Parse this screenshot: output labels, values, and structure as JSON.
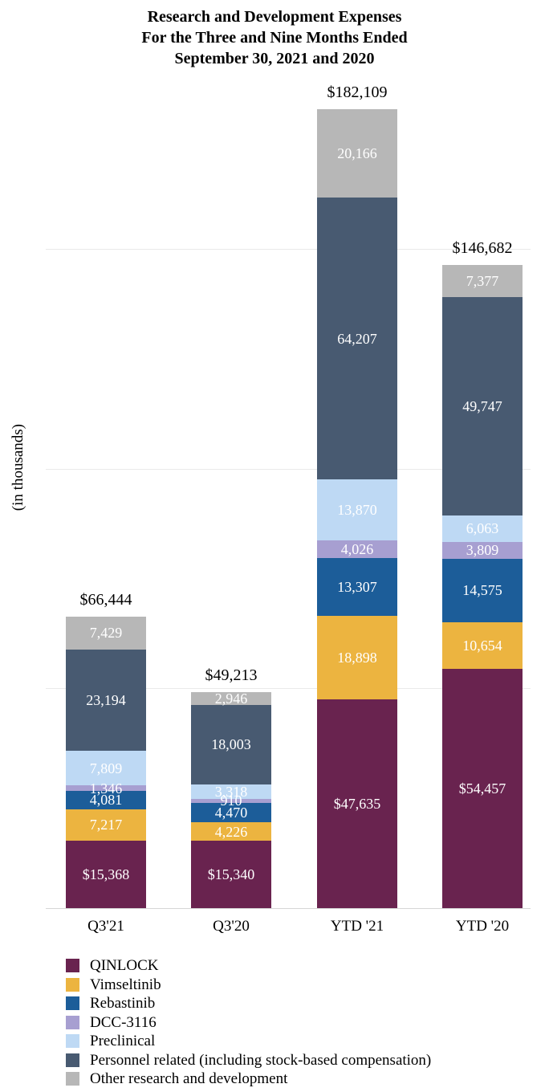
{
  "title_lines": [
    "Research and Development Expenses",
    "For the Three and Nine Months Ended",
    "September 30, 2021 and 2020"
  ],
  "y_axis_label": "(in thousands)",
  "chart_data": {
    "type": "bar",
    "stacked": true,
    "categories": [
      "Q3'21",
      "Q3'20",
      "YTD '21",
      "YTD '20"
    ],
    "totals_values": [
      66444,
      49213,
      182109,
      146682
    ],
    "totals_labels": [
      "$66,444",
      "$49,213",
      "$182,109",
      "$146,682"
    ],
    "series": [
      {
        "name": "QINLOCK",
        "color": "#69234f",
        "values": [
          15368,
          15340,
          47635,
          54457
        ],
        "labels": [
          "$15,368",
          "$15,340",
          "$47,635",
          "$54,457"
        ]
      },
      {
        "name": "Vimseltinib",
        "color": "#ecb440",
        "values": [
          7217,
          4226,
          18898,
          10654
        ],
        "labels": [
          "7,217",
          "4,226",
          "18,898",
          "10,654"
        ]
      },
      {
        "name": "Rebastinib",
        "color": "#1c5d99",
        "values": [
          4081,
          4470,
          13307,
          14575
        ],
        "labels": [
          "4,081",
          "4,470",
          "13,307",
          "14,575"
        ]
      },
      {
        "name": "DCC-3116",
        "color": "#a79fd1",
        "values": [
          1346,
          910,
          4026,
          3809
        ],
        "labels": [
          "1,346",
          "910",
          "4,026",
          "3,809"
        ]
      },
      {
        "name": "Preclinical",
        "color": "#bed9f4",
        "values": [
          7809,
          3318,
          13870,
          6063
        ],
        "labels": [
          "7,809",
          "3,318",
          "13,870",
          "6,063"
        ]
      },
      {
        "name": "Personnel related (including stock-based compensation)",
        "color": "#485a71",
        "values": [
          23194,
          18003,
          64207,
          49747
        ],
        "labels": [
          "23,194",
          "18,003",
          "64,207",
          "49,747"
        ]
      },
      {
        "name": "Other research and development",
        "color": "#b7b7b7",
        "values": [
          7429,
          2946,
          20166,
          7377
        ],
        "labels": [
          "7,429",
          "2,946",
          "20,166",
          "7,377"
        ]
      }
    ],
    "gridlines": [
      50000,
      100000,
      150000
    ],
    "ylim": [
      0,
      190000
    ],
    "grid": true,
    "legend_position": "bottom-left",
    "xlabel": "",
    "ylabel": "(in thousands)"
  }
}
